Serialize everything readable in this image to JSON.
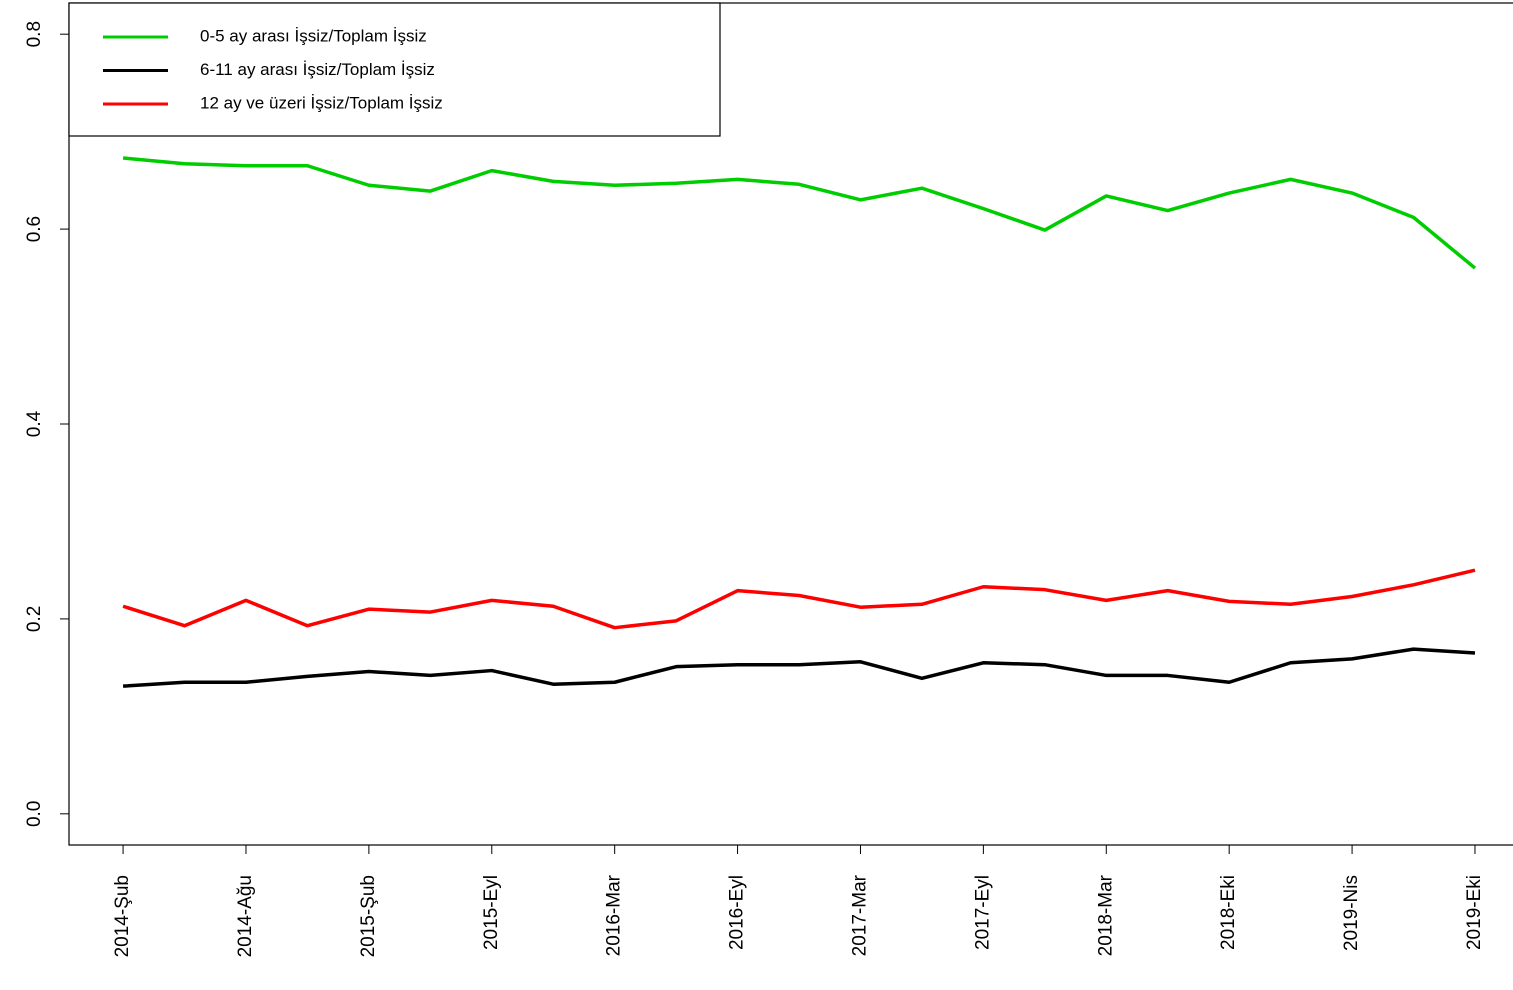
{
  "chart_data": {
    "type": "line",
    "categories": [
      "2014-Şub",
      null,
      "2014-Ağu",
      null,
      "2015-Şub",
      null,
      "2015-Eyl",
      null,
      "2016-Mar",
      null,
      "2016-Eyl",
      null,
      "2017-Mar",
      null,
      "2017-Eyl",
      null,
      "2018-Mar",
      null,
      "2018-Eki",
      null,
      "2019-Nis",
      null,
      "2019-Eki"
    ],
    "series": [
      {
        "name": "0-5 ay arası İşsiz/Toplam İşsiz",
        "color": "#00cd00",
        "values": [
          0.673,
          0.667,
          0.665,
          0.665,
          0.645,
          0.639,
          0.66,
          0.649,
          0.645,
          0.647,
          0.651,
          0.646,
          0.63,
          0.642,
          0.621,
          0.599,
          0.634,
          0.619,
          0.637,
          0.651,
          0.637,
          0.612,
          0.56
        ]
      },
      {
        "name": "6-11 ay arası İşsiz/Toplam İşsiz",
        "color": "#000000",
        "values": [
          0.131,
          0.135,
          0.135,
          0.141,
          0.146,
          0.142,
          0.147,
          0.133,
          0.135,
          0.151,
          0.153,
          0.153,
          0.156,
          0.139,
          0.155,
          0.153,
          0.142,
          0.142,
          0.135,
          0.155,
          0.159,
          0.169,
          0.165
        ]
      },
      {
        "name": "12 ay ve üzeri İşsiz/Toplam İşsiz",
        "color": "#ff0000",
        "values": [
          0.213,
          0.193,
          0.219,
          0.193,
          0.21,
          0.207,
          0.219,
          0.213,
          0.191,
          0.198,
          0.229,
          0.224,
          0.212,
          0.215,
          0.233,
          0.23,
          0.219,
          0.229,
          0.218,
          0.215,
          0.223,
          0.235,
          0.25
        ]
      }
    ],
    "ylim": [
      -0.032,
      0.832
    ],
    "yticks": [
      {
        "value": 0,
        "label": "0.0"
      },
      0.2,
      0.4,
      0.6,
      0.8
    ],
    "legend": "topleft"
  }
}
